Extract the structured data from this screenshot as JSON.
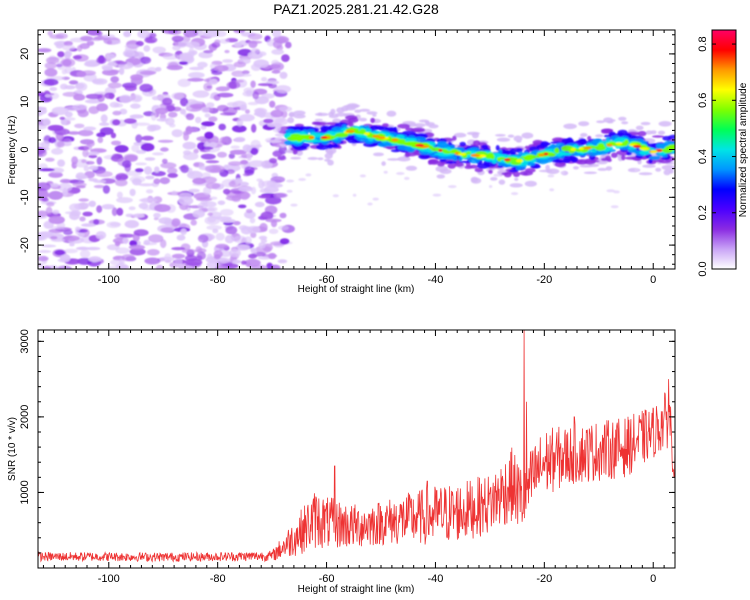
{
  "title": "PAZ1.2025.281.21.42.G28",
  "chart_data": [
    {
      "type": "heatmap",
      "name": "spectrogram",
      "xlabel": "Height of straight line (km)",
      "ylabel": "Frequency (Hz)",
      "xlim": [
        -113,
        4
      ],
      "ylim": [
        -25,
        25
      ],
      "x_ticks": [
        -100,
        -80,
        -60,
        -40,
        -20,
        0
      ],
      "x_tick_labels": [
        "-100",
        "-80",
        "-60",
        "-40",
        "-20",
        "0"
      ],
      "y_ticks": [
        -20,
        -10,
        0,
        10,
        20
      ],
      "y_tick_labels": [
        "-20",
        "-10",
        "0",
        "10",
        "20"
      ],
      "noise_region_x": [
        -113,
        -67
      ],
      "signal_trace": {
        "x": [
          -67,
          -60,
          -55,
          -50,
          -45,
          -40,
          -35,
          -30,
          -25,
          -20,
          -15,
          -10,
          -5,
          0,
          4
        ],
        "freq": [
          2.5,
          2.5,
          4,
          2.5,
          1.5,
          0,
          -1,
          -1.5,
          -2.5,
          -1,
          0,
          0.5,
          1.5,
          -0.5,
          0.5
        ]
      },
      "colorbar": {
        "label": "Normalized spectral amplitude",
        "range": [
          0,
          0.85
        ],
        "ticks": [
          0.0,
          0.2,
          0.4,
          0.6,
          0.8
        ],
        "tick_labels": [
          "0.0",
          "0.2",
          "0.4",
          "0.6",
          "0.8"
        ],
        "colors": [
          "#ffffff",
          "#c9a4f6",
          "#8a2be2",
          "#4b00ff",
          "#0000ff",
          "#0096ff",
          "#00e5e5",
          "#00ff55",
          "#7fff00",
          "#ffff00",
          "#ff9900",
          "#ff0000",
          "#ff0066"
        ]
      }
    },
    {
      "type": "line",
      "name": "snr",
      "xlabel": "Height of straight line (km)",
      "ylabel": "SNR (10 * v/v)",
      "xlim": [
        -113,
        4
      ],
      "ylim": [
        0,
        3150
      ],
      "x_ticks": [
        -100,
        -80,
        -60,
        -40,
        -20,
        0
      ],
      "x_tick_labels": [
        "-100",
        "-80",
        "-60",
        "-40",
        "-20",
        "0"
      ],
      "y_ticks": [
        1000,
        2000,
        3000
      ],
      "y_tick_labels": [
        "1000",
        "2000",
        "3000"
      ],
      "color": "#ee3333",
      "envelope": {
        "x": [
          -113,
          -100,
          -90,
          -80,
          -70,
          -66,
          -62,
          -60,
          -55,
          -50,
          -45,
          -40,
          -35,
          -30,
          -26,
          -24,
          -22,
          -20,
          -15,
          -10,
          -5,
          0,
          3,
          4
        ],
        "mean": [
          150,
          150,
          145,
          150,
          160,
          400,
          650,
          600,
          550,
          600,
          650,
          700,
          750,
          850,
          1100,
          900,
          1200,
          1400,
          1500,
          1550,
          1600,
          1800,
          2000,
          1300
        ],
        "amp": [
          60,
          60,
          60,
          60,
          70,
          250,
          400,
          350,
          300,
          300,
          350,
          400,
          400,
          400,
          500,
          450,
          450,
          450,
          400,
          400,
          400,
          350,
          400,
          300
        ]
      },
      "spikes": [
        {
          "x": -23.7,
          "y": 3150
        },
        {
          "x": -23.3,
          "y": 2200
        },
        {
          "x": -58.5,
          "y": 1350
        },
        {
          "x": -41.5,
          "y": 1150
        },
        {
          "x": 2.8,
          "y": 2500
        },
        {
          "x": -14.5,
          "y": 2000
        }
      ]
    }
  ]
}
